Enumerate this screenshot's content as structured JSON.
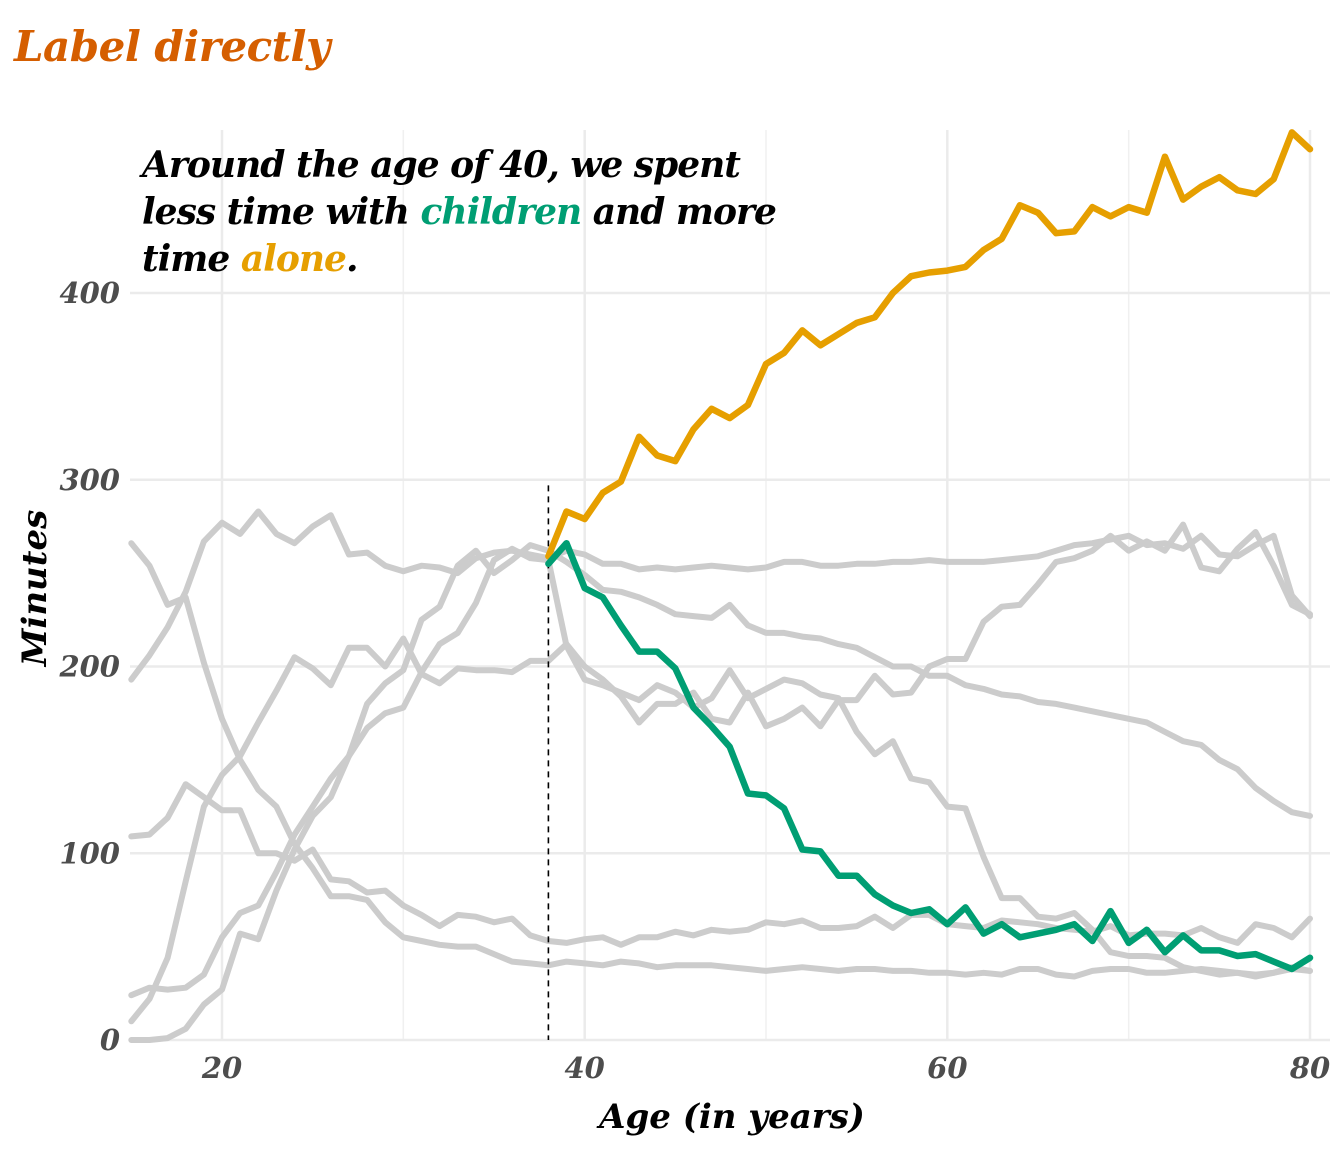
{
  "page": {
    "title": "Label directly"
  },
  "annotation": {
    "part1": "Around the age of 40, we spent less time with ",
    "highlight1": "children",
    "part2": " and more time ",
    "highlight2": "alone",
    "part3": ".",
    "highlight1_color": "#009e73",
    "highlight2_color": "#e69f00"
  },
  "chart_data": {
    "type": "line",
    "xlabel": "Age (in years)",
    "ylabel": "Minutes",
    "xlim": [
      15,
      80
    ],
    "ylim": [
      0,
      485
    ],
    "x_ticks": [
      20,
      40,
      60,
      80
    ],
    "y_ticks": [
      0,
      100,
      200,
      300,
      400
    ],
    "grid": true,
    "reference_line": {
      "x": 38,
      "style": "dashed",
      "y_top": 297
    },
    "colors": {
      "highlight_alone": "#e69f00",
      "highlight_children": "#009e73",
      "background_series": "#cccccc"
    },
    "background_series": [
      {
        "x": [
          15,
          16,
          17,
          18,
          19,
          20,
          21,
          22,
          23,
          24,
          25,
          26,
          27,
          28,
          29,
          30,
          31,
          32,
          33,
          34,
          35,
          36,
          37,
          38,
          39,
          40,
          41,
          42,
          43,
          44,
          45,
          46,
          47,
          48,
          49,
          50,
          51,
          52,
          53,
          54,
          55,
          56,
          57,
          58,
          59,
          60,
          61,
          62,
          63,
          64,
          65,
          66,
          67,
          68,
          69,
          70,
          71,
          72,
          73,
          74,
          75,
          76,
          77,
          78,
          79,
          80
        ],
        "y": [
          266,
          254,
          233,
          237,
          202,
          172,
          150,
          134,
          125,
          105,
          92,
          77,
          77,
          75,
          63,
          55,
          53,
          51,
          50,
          50,
          46,
          42,
          41,
          40,
          42,
          41,
          40,
          42,
          41,
          39,
          40,
          40,
          40,
          39,
          38,
          37,
          38,
          39,
          38,
          37,
          38,
          38,
          37,
          37,
          36,
          36,
          35,
          36,
          35,
          38,
          38,
          35,
          34,
          37,
          38,
          38,
          36,
          36,
          37,
          38,
          37,
          36,
          34,
          36,
          38,
          37
        ]
      },
      {
        "x": [
          15,
          16,
          17,
          18,
          19,
          20,
          21,
          22,
          23,
          24,
          25,
          26,
          27,
          28,
          29,
          30,
          31,
          32,
          33,
          34,
          35,
          36,
          37,
          38,
          39,
          40,
          41,
          42,
          43,
          44,
          45,
          46,
          47,
          48,
          49,
          50,
          51,
          52,
          53,
          54,
          55,
          56,
          57,
          58,
          59,
          60,
          61,
          62,
          63,
          64,
          65,
          66,
          67,
          68,
          69,
          70,
          71,
          72,
          73,
          74,
          75,
          76,
          77,
          78,
          79,
          80
        ],
        "y": [
          193,
          206,
          221,
          240,
          267,
          277,
          271,
          283,
          271,
          266,
          275,
          281,
          260,
          261,
          254,
          251,
          254,
          253,
          250,
          258,
          261,
          262,
          260,
          258,
          262,
          260,
          255,
          255,
          252,
          253,
          252,
          253,
          254,
          253,
          252,
          253,
          256,
          256,
          254,
          254,
          255,
          255,
          256,
          256,
          257,
          256,
          256,
          256,
          257,
          258,
          259,
          262,
          265,
          266,
          268,
          270,
          265,
          266,
          263,
          270,
          260,
          259,
          265,
          270,
          238,
          227
        ]
      },
      {
        "x": [
          15,
          16,
          17,
          18,
          19,
          20,
          21,
          22,
          23,
          24,
          25,
          26,
          27,
          28,
          29,
          30,
          31,
          32,
          33,
          34,
          35,
          36,
          37,
          38,
          39,
          40,
          41,
          42,
          43,
          44,
          45,
          46,
          47,
          48,
          49,
          50,
          51,
          52,
          53,
          54,
          55,
          56,
          57,
          58,
          59,
          60,
          61,
          62,
          63,
          64,
          65,
          66,
          67,
          68,
          69,
          70,
          71,
          72,
          73,
          74,
          75,
          76,
          77,
          78,
          79,
          80
        ],
        "y": [
          109,
          110,
          119,
          137,
          130,
          123,
          123,
          100,
          100,
          96,
          102,
          86,
          85,
          79,
          80,
          72,
          67,
          61,
          67,
          66,
          63,
          65,
          56,
          53,
          52,
          54,
          55,
          51,
          55,
          55,
          58,
          56,
          59,
          58,
          59,
          63,
          62,
          64,
          60,
          60,
          61,
          66,
          60,
          67,
          67,
          62,
          61,
          60,
          64,
          63,
          62,
          60,
          59,
          58,
          61,
          56,
          57,
          57,
          56,
          60,
          55,
          52,
          62,
          60,
          55,
          65
        ]
      },
      {
        "x": [
          15,
          16,
          17,
          18,
          19,
          20,
          21,
          22,
          23,
          24,
          25,
          26,
          27,
          28,
          29,
          30,
          31,
          32,
          33,
          34,
          35,
          36,
          37,
          38,
          39,
          40,
          41,
          42,
          43,
          44,
          45,
          46,
          47,
          48,
          49,
          50,
          51,
          52,
          53,
          54,
          55,
          56,
          57,
          58,
          59,
          60,
          61,
          62,
          63,
          64,
          65,
          66,
          67,
          68,
          69,
          70,
          71,
          72,
          73,
          74,
          75,
          76,
          77,
          78,
          79,
          80
        ],
        "y": [
          10,
          22,
          44,
          85,
          125,
          142,
          152,
          170,
          187,
          205,
          199,
          190,
          210,
          210,
          200,
          215,
          196,
          191,
          199,
          198,
          198,
          197,
          203,
          203,
          212,
          200,
          193,
          184,
          170,
          180,
          180,
          186,
          172,
          170,
          186,
          168,
          172,
          178,
          168,
          182,
          182,
          195,
          185,
          186,
          200,
          204,
          204,
          224,
          232,
          233,
          244,
          256,
          258,
          262,
          270,
          262,
          267,
          262,
          276,
          253,
          251,
          263,
          272,
          254,
          233,
          228
        ]
      },
      {
        "x": [
          15,
          16,
          17,
          18,
          19,
          20,
          21,
          22,
          23,
          24,
          25,
          26,
          27,
          28,
          29,
          30,
          31,
          32,
          33,
          34,
          35,
          36,
          37,
          38,
          39,
          40,
          41,
          42,
          43,
          44,
          45,
          46,
          47,
          48,
          49,
          50,
          51,
          52,
          53,
          54,
          55,
          56,
          57,
          58,
          59,
          60,
          61,
          62,
          63,
          64,
          65,
          66,
          67,
          68,
          69,
          70,
          71,
          72,
          73,
          74,
          75,
          76,
          77,
          78,
          79,
          80
        ],
        "y": [
          24,
          28,
          27,
          28,
          35,
          55,
          68,
          72,
          90,
          110,
          125,
          140,
          152,
          167,
          175,
          178,
          197,
          212,
          218,
          234,
          257,
          263,
          258,
          257,
          211,
          193,
          190,
          186,
          182,
          190,
          186,
          178,
          183,
          198,
          183,
          188,
          193,
          191,
          185,
          183,
          165,
          153,
          160,
          140,
          138,
          125,
          124,
          98,
          76,
          76,
          66,
          65,
          68,
          59,
          47,
          45,
          45,
          44,
          39,
          37,
          35,
          36,
          35,
          36,
          39,
          37
        ]
      },
      {
        "x": [
          15,
          16,
          17,
          18,
          19,
          20,
          21,
          22,
          23,
          24,
          25,
          26,
          27,
          28,
          29,
          30,
          31,
          32,
          33,
          34,
          35,
          36,
          37,
          38,
          39,
          40,
          41,
          42,
          43,
          44,
          45,
          46,
          47,
          48,
          49,
          50,
          51,
          52,
          53,
          54,
          55,
          56,
          57,
          58,
          59,
          60,
          61,
          62,
          63,
          64,
          65,
          66,
          67,
          68,
          69,
          70,
          71,
          72,
          73,
          74,
          75,
          76,
          77,
          78,
          79,
          80
        ],
        "y": [
          0,
          0,
          1,
          6,
          19,
          27,
          57,
          54,
          80,
          102,
          120,
          130,
          152,
          180,
          191,
          198,
          225,
          232,
          254,
          262,
          250,
          257,
          265,
          262,
          256,
          249,
          241,
          240,
          237,
          233,
          228,
          227,
          226,
          233,
          222,
          218,
          218,
          216,
          215,
          212,
          210,
          205,
          200,
          200,
          195,
          195,
          190,
          188,
          185,
          184,
          181,
          180,
          178,
          176,
          174,
          172,
          170,
          165,
          160,
          158,
          150,
          145,
          135,
          128,
          122,
          120
        ]
      }
    ],
    "series": [
      {
        "name": "alone",
        "x": [
          38,
          39,
          40,
          41,
          42,
          43,
          44,
          45,
          46,
          47,
          48,
          49,
          50,
          51,
          52,
          53,
          54,
          55,
          56,
          57,
          58,
          59,
          60,
          61,
          62,
          63,
          64,
          65,
          66,
          67,
          68,
          69,
          70,
          71,
          72,
          73,
          74,
          75,
          76,
          77,
          78,
          79,
          80
        ],
        "y": [
          259,
          283,
          279,
          293,
          299,
          323,
          313,
          310,
          327,
          338,
          333,
          340,
          362,
          368,
          380,
          372,
          378,
          384,
          387,
          400,
          409,
          411,
          412,
          414,
          423,
          429,
          447,
          443,
          432,
          433,
          446,
          441,
          446,
          443,
          473,
          450,
          457,
          462,
          455,
          453,
          461,
          486,
          477
        ]
      },
      {
        "name": "children",
        "x": [
          38,
          39,
          40,
          41,
          42,
          43,
          44,
          45,
          46,
          47,
          48,
          49,
          50,
          51,
          52,
          53,
          54,
          55,
          56,
          57,
          58,
          59,
          60,
          61,
          62,
          63,
          64,
          65,
          66,
          67,
          68,
          69,
          70,
          71,
          72,
          73,
          74,
          75,
          76,
          77,
          78,
          79,
          80
        ],
        "y": [
          255,
          266,
          242,
          237,
          222,
          208,
          208,
          199,
          178,
          168,
          157,
          132,
          131,
          124,
          102,
          101,
          88,
          88,
          78,
          72,
          68,
          70,
          62,
          71,
          57,
          62,
          55,
          57,
          59,
          62,
          53,
          69,
          52,
          59,
          47,
          56,
          48,
          48,
          45,
          46,
          42,
          38,
          44
        ]
      }
    ]
  }
}
